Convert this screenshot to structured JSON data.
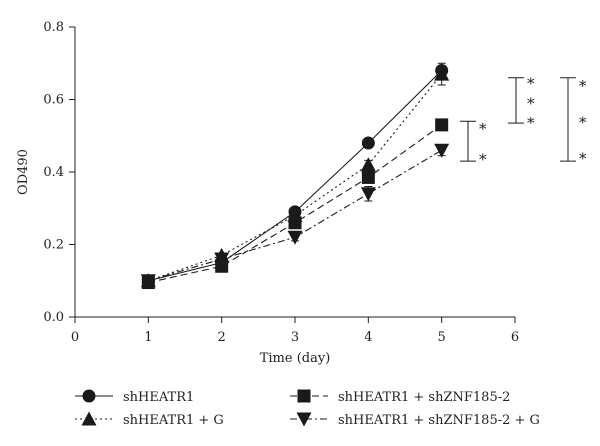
{
  "chart_data": {
    "type": "line",
    "title": "",
    "xlabel": "Time (day)",
    "ylabel": "OD490",
    "xlim": [
      0,
      6
    ],
    "ylim": [
      0,
      0.8
    ],
    "xticks": [
      "0",
      "1",
      "2",
      "3",
      "4",
      "5",
      "6"
    ],
    "yticks": [
      "0.0",
      "0.2",
      "0.4",
      "0.6",
      "0.8"
    ],
    "grid": false,
    "legend_position": "bottom",
    "x": [
      1,
      2,
      3,
      4,
      5
    ],
    "series": [
      {
        "name": "shHEATR1",
        "marker": "circle",
        "line_style": "solid",
        "values": [
          0.1,
          0.15,
          0.29,
          0.48,
          0.68
        ],
        "errors": [
          0.008,
          0.006,
          0.01,
          0.008,
          0.01
        ]
      },
      {
        "name": "shHEATR1 + G",
        "marker": "triangle-up",
        "line_style": "dotted",
        "values": [
          0.1,
          0.17,
          0.28,
          0.42,
          0.67
        ],
        "errors": [
          0.008,
          0.006,
          0.01,
          0.012,
          0.03
        ]
      },
      {
        "name": "shHEATR1 + shZNF185-2",
        "marker": "square",
        "line_style": "dashed",
        "values": [
          0.095,
          0.14,
          0.26,
          0.385,
          0.53
        ],
        "errors": [
          0.008,
          0.006,
          0.01,
          0.015,
          0.01
        ]
      },
      {
        "name": "shHEATR1 + shZNF185-2 + G",
        "marker": "triangle-down",
        "line_style": "dash-dot",
        "values": [
          0.1,
          0.16,
          0.22,
          0.34,
          0.46
        ],
        "errors": [
          0.008,
          0.006,
          0.01,
          0.02,
          0.015
        ]
      }
    ],
    "significance": [
      {
        "y_range": [
          0.535,
          0.66
        ],
        "stars": [
          "*",
          "*",
          "*"
        ],
        "position": "inner"
      },
      {
        "y_range": [
          0.43,
          0.54
        ],
        "stars": [
          "*",
          "*"
        ],
        "position": "left"
      },
      {
        "y_range": [
          0.43,
          0.66
        ],
        "stars": [
          "*",
          "*",
          "*"
        ],
        "position": "outer"
      }
    ]
  }
}
